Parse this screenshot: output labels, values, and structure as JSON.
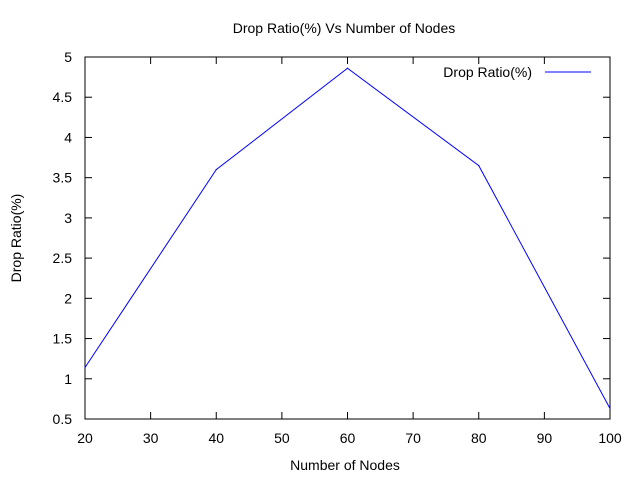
{
  "chart_data": {
    "type": "line",
    "title": "Drop Ratio(%) Vs Number of Nodes",
    "xlabel": "Number of Nodes",
    "ylabel": "Drop Ratio(%)",
    "xlim": [
      20,
      100
    ],
    "ylim": [
      0.5,
      5
    ],
    "xticks": [
      20,
      30,
      40,
      50,
      60,
      70,
      80,
      90,
      100
    ],
    "yticks": [
      0.5,
      1,
      1.5,
      2,
      2.5,
      3,
      3.5,
      4,
      4.5,
      5
    ],
    "ytick_labels": [
      "0.5",
      "1",
      "1.5",
      "2",
      "2.5",
      "3",
      "3.5",
      "4",
      "4.5",
      "5"
    ],
    "grid": false,
    "legend_position": "top-right",
    "series": [
      {
        "name": "Drop Ratio(%)",
        "color": "#0000ff",
        "x": [
          20,
          40,
          60,
          80,
          100
        ],
        "y": [
          1.14,
          3.6,
          4.86,
          3.65,
          0.63
        ]
      }
    ]
  }
}
